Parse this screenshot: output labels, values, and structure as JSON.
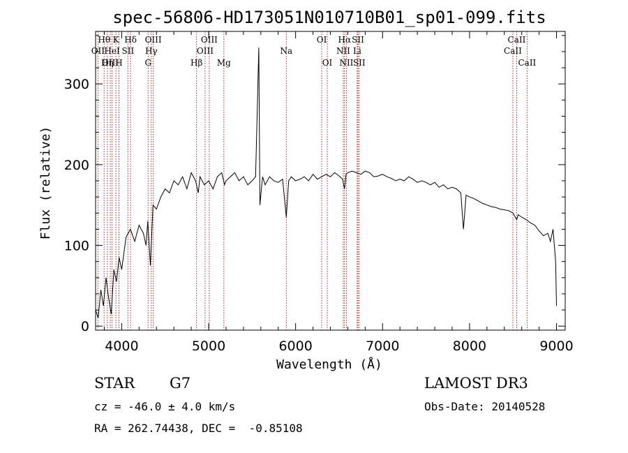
{
  "chart_data": {
    "type": "line",
    "title": "spec-56806-HD173051N010710B01_sp01-099.fits",
    "xlabel": "Wavelength (Å)",
    "ylabel": "Flux (relative)",
    "xlim": [
      3700,
      9100
    ],
    "ylim": [
      -5,
      365
    ],
    "xticks": [
      4000,
      5000,
      6000,
      7000,
      8000,
      9000
    ],
    "yticks": [
      0,
      100,
      200,
      300
    ],
    "grid": false,
    "series": [
      {
        "x": [
          3700,
          3730,
          3760,
          3790,
          3820,
          3850,
          3880,
          3910,
          3940,
          3970,
          4000,
          4050,
          4100,
          4150,
          4200,
          4250,
          4280,
          4300,
          4330,
          4360,
          4400,
          4450,
          4500,
          4550,
          4600,
          4650,
          4700,
          4750,
          4800,
          4850,
          4880,
          4900,
          4950,
          5000,
          5050,
          5100,
          5150,
          5183,
          5200,
          5250,
          5300,
          5350,
          5400,
          5450,
          5500,
          5540,
          5577,
          5590,
          5620,
          5650,
          5700,
          5750,
          5800,
          5850,
          5893,
          5920,
          5950,
          6000,
          6050,
          6100,
          6150,
          6200,
          6250,
          6300,
          6350,
          6400,
          6450,
          6500,
          6540,
          6563,
          6580,
          6600,
          6650,
          6700,
          6750,
          6800,
          6850,
          6900,
          6950,
          7000,
          7050,
          7100,
          7150,
          7200,
          7250,
          7300,
          7350,
          7400,
          7450,
          7500,
          7550,
          7600,
          7650,
          7700,
          7750,
          7800,
          7850,
          7900,
          7930,
          7960,
          8000,
          8050,
          8100,
          8150,
          8200,
          8250,
          8300,
          8350,
          8400,
          8450,
          8500,
          8542,
          8560,
          8600,
          8650,
          8700,
          8750,
          8800,
          8850,
          8900,
          8930,
          8960,
          8990,
          9000
        ],
        "y": [
          20,
          10,
          45,
          25,
          60,
          35,
          15,
          70,
          55,
          85,
          70,
          110,
          120,
          105,
          125,
          115,
          100,
          130,
          75,
          150,
          145,
          160,
          170,
          165,
          180,
          175,
          185,
          170,
          190,
          180,
          165,
          185,
          175,
          180,
          170,
          185,
          190,
          175,
          180,
          185,
          190,
          180,
          185,
          175,
          180,
          185,
          345,
          150,
          185,
          175,
          185,
          180,
          178,
          182,
          135,
          180,
          185,
          180,
          182,
          185,
          180,
          188,
          182,
          185,
          188,
          185,
          190,
          186,
          182,
          170,
          188,
          190,
          192,
          190,
          188,
          192,
          190,
          185,
          186,
          188,
          185,
          183,
          180,
          182,
          180,
          185,
          182,
          178,
          180,
          178,
          175,
          178,
          172,
          175,
          170,
          172,
          170,
          165,
          120,
          162,
          160,
          158,
          155,
          152,
          150,
          148,
          147,
          145,
          144,
          143,
          140,
          132,
          138,
          135,
          132,
          128,
          125,
          118,
          112,
          115,
          105,
          120,
          80,
          25
        ]
      }
    ],
    "spectral_lines": [
      {
        "label": "Hθ",
        "x": 3798,
        "row": 1
      },
      {
        "label": "OII",
        "x": 3727,
        "row": 2
      },
      {
        "label": "OIII",
        "x": 3869,
        "row": 3
      },
      {
        "label": "K",
        "x": 3934,
        "row": 1
      },
      {
        "label": "HeI",
        "x": 3889,
        "row": 2
      },
      {
        "label": "Hη",
        "x": 3835,
        "row": 3
      },
      {
        "label": "H",
        "x": 3969,
        "row": 3
      },
      {
        "label": "SII",
        "x": 4072,
        "row": 2
      },
      {
        "label": "Hδ",
        "x": 4102,
        "row": 1
      },
      {
        "label": "OIII",
        "x": 4363,
        "row": 1
      },
      {
        "label": "Hγ",
        "x": 4340,
        "row": 2
      },
      {
        "label": "G",
        "x": 4304,
        "row": 3
      },
      {
        "label": "OIII",
        "x": 5007,
        "row": 1
      },
      {
        "label": "OIII",
        "x": 4959,
        "row": 2
      },
      {
        "label": "Hβ",
        "x": 4861,
        "row": 3
      },
      {
        "label": "Mg",
        "x": 5175,
        "row": 3
      },
      {
        "label": "Na",
        "x": 5893,
        "row": 2
      },
      {
        "label": "OI",
        "x": 6300,
        "row": 1
      },
      {
        "label": "OI",
        "x": 6364,
        "row": 3
      },
      {
        "label": "Hα",
        "x": 6563,
        "row": 1
      },
      {
        "label": "NII",
        "x": 6548,
        "row": 2
      },
      {
        "label": "NII",
        "x": 6584,
        "row": 3
      },
      {
        "label": "SII",
        "x": 6717,
        "row": 1
      },
      {
        "label": "Li",
        "x": 6708,
        "row": 2
      },
      {
        "label": "SII",
        "x": 6731,
        "row": 3
      },
      {
        "label": "CaII",
        "x": 8542,
        "row": 1
      },
      {
        "label": "CaII",
        "x": 8498,
        "row": 2
      },
      {
        "label": "CaII",
        "x": 8662,
        "row": 3
      }
    ],
    "colors": {
      "spectrum": "#000000",
      "line_markers": "#b22222"
    }
  },
  "info": {
    "object_type": "STAR",
    "subclass": "G7",
    "survey": "LAMOST DR3",
    "cz_text": "cz = -46.0 ± 4.0 km/s",
    "obs_date_text": "Obs-Date: 20140528",
    "coords_text": "RA = 262.74438, DEC =  -0.85108"
  }
}
